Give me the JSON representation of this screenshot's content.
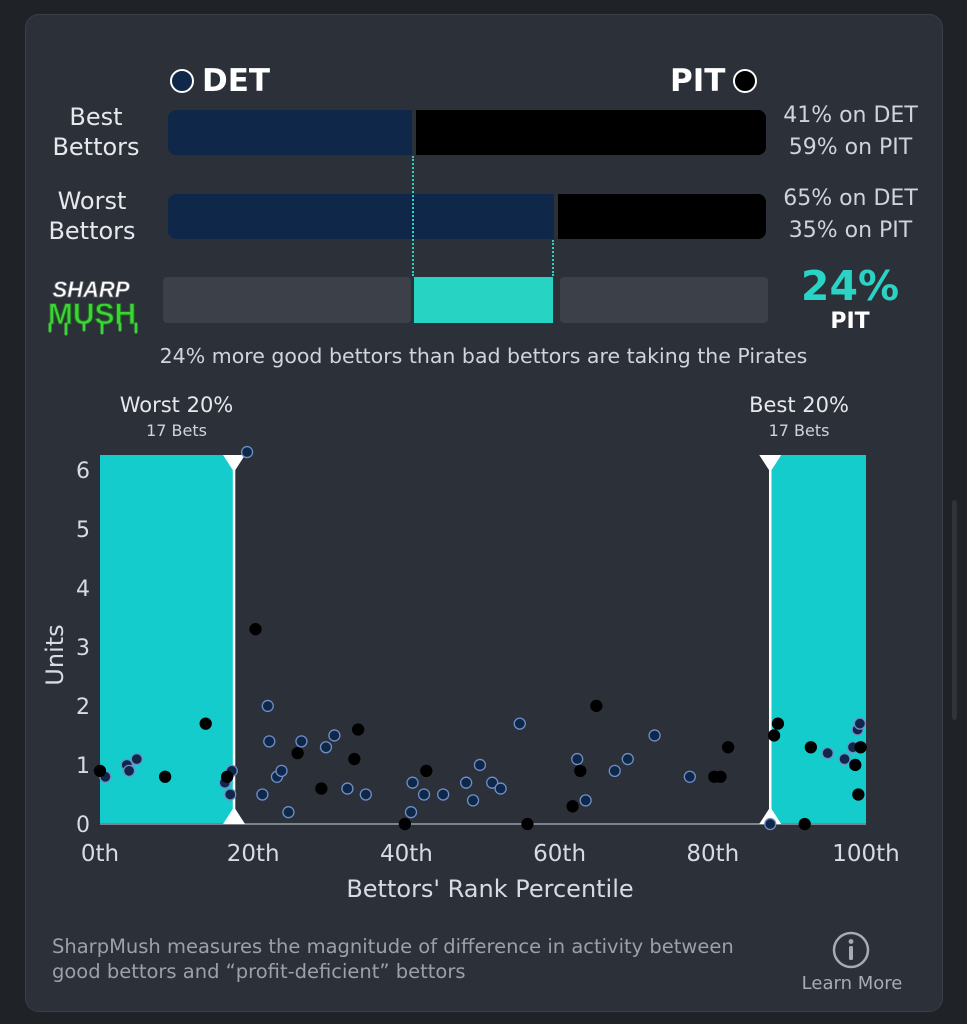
{
  "teams": {
    "left": {
      "abbr": "DET",
      "color": "#0f2748"
    },
    "right": {
      "abbr": "PIT",
      "color": "#000000"
    }
  },
  "rows": {
    "best": {
      "label_line1": "Best",
      "label_line2": "Bettors",
      "det_pct": 41,
      "pit_pct": 59,
      "det_text": "41% on DET",
      "pit_text": "59% on PIT"
    },
    "worst": {
      "label_line1": "Worst",
      "label_line2": "Bettors",
      "det_pct": 65,
      "pit_pct": 35,
      "det_text": "65% on DET",
      "pit_text": "35% on PIT"
    }
  },
  "sharpmush": {
    "logo_line1": "SHARP",
    "logo_line2": "MUSH",
    "value_text": "24%",
    "team": "PIT",
    "value": 24,
    "summary": "24% more good bettors than bad bettors are taking the Pirates"
  },
  "zones": {
    "worst": {
      "title": "Worst 20%",
      "sub": "17 Bets"
    },
    "best": {
      "title": "Best 20%",
      "sub": "17 Bets"
    }
  },
  "chart_data": {
    "type": "scatter",
    "xlabel": "Bettors' Rank Percentile",
    "ylabel": "Units",
    "xlim": [
      0,
      100
    ],
    "ylim": [
      0,
      6.25
    ],
    "xticks": [
      "0th",
      "20th",
      "40th",
      "60th",
      "80th",
      "100th"
    ],
    "yticks": [
      "0",
      "1",
      "2",
      "3",
      "4",
      "5",
      "6"
    ],
    "highlight_ranges": [
      [
        0,
        17.5
      ],
      [
        87.5,
        100
      ]
    ],
    "series": [
      {
        "team": "DET",
        "color": "#0f2748",
        "points": [
          [
            0.7,
            0.8
          ],
          [
            3.5,
            1.0
          ],
          [
            3.8,
            0.9
          ],
          [
            4.8,
            1.1
          ],
          [
            16.3,
            0.7
          ],
          [
            17.0,
            0.5
          ],
          [
            17.2,
            0.9
          ],
          [
            19.2,
            6.3
          ],
          [
            21.2,
            0.5
          ],
          [
            21.9,
            2.0
          ],
          [
            22.1,
            1.4
          ],
          [
            23.1,
            0.8
          ],
          [
            23.7,
            0.9
          ],
          [
            24.6,
            0.2
          ],
          [
            26.3,
            1.4
          ],
          [
            29.5,
            1.3
          ],
          [
            30.6,
            1.5
          ],
          [
            32.3,
            0.6
          ],
          [
            34.7,
            0.5
          ],
          [
            40.6,
            0.2
          ],
          [
            40.8,
            0.7
          ],
          [
            42.3,
            0.5
          ],
          [
            44.8,
            0.5
          ],
          [
            47.8,
            0.7
          ],
          [
            48.7,
            0.4
          ],
          [
            49.6,
            1.0
          ],
          [
            51.2,
            0.7
          ],
          [
            52.3,
            0.6
          ],
          [
            54.8,
            1.7
          ],
          [
            62.3,
            1.1
          ],
          [
            63.4,
            0.4
          ],
          [
            67.2,
            0.9
          ],
          [
            68.9,
            1.1
          ],
          [
            72.4,
            1.5
          ],
          [
            77.0,
            0.8
          ],
          [
            87.5,
            0.0
          ],
          [
            95.0,
            1.2
          ],
          [
            97.2,
            1.1
          ],
          [
            98.3,
            1.3
          ],
          [
            98.9,
            1.6
          ],
          [
            99.2,
            1.7
          ]
        ]
      },
      {
        "team": "PIT",
        "color": "#000000",
        "points": [
          [
            0.0,
            0.9
          ],
          [
            8.5,
            0.8
          ],
          [
            13.8,
            1.7
          ],
          [
            16.6,
            0.8
          ],
          [
            20.3,
            3.3
          ],
          [
            25.8,
            1.2
          ],
          [
            28.9,
            0.6
          ],
          [
            33.2,
            1.1
          ],
          [
            33.7,
            1.6
          ],
          [
            39.8,
            0.0
          ],
          [
            42.6,
            0.9
          ],
          [
            55.8,
            0.0
          ],
          [
            61.7,
            0.3
          ],
          [
            62.7,
            0.9
          ],
          [
            64.8,
            2.0
          ],
          [
            80.2,
            0.8
          ],
          [
            81.0,
            0.8
          ],
          [
            82.0,
            1.3
          ],
          [
            88.0,
            1.5
          ],
          [
            88.5,
            1.7
          ],
          [
            92.0,
            0.0
          ],
          [
            92.8,
            1.3
          ],
          [
            98.6,
            1.0
          ],
          [
            99.0,
            0.5
          ],
          [
            99.3,
            1.3
          ]
        ]
      }
    ]
  },
  "footer": {
    "description": "SharpMush measures the magnitude of difference in activity between good bettors and “profit-deficient” bettors",
    "learn_more": "Learn More"
  }
}
